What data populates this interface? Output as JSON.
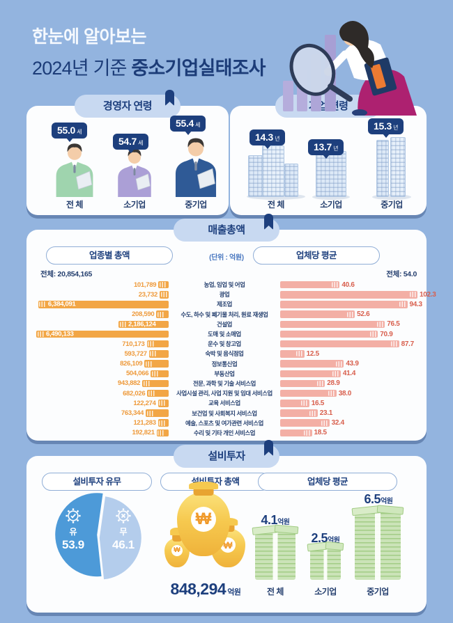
{
  "header": {
    "line1": "한눈에 알아보는",
    "line2_prefix": "2024년 기준 ",
    "line2_bold": "중소기업실태조사"
  },
  "colors": {
    "background": "#93b4df",
    "navy": "#1d3f7d",
    "card": "#fcfdfe",
    "pill": "#c8d9f1",
    "orange_bar": "#f2a645",
    "orange_text": "#ee9a3b",
    "pink_bar": "#f3afa5",
    "coral_text": "#d85f4d",
    "pie_yes": "#4d9ad8",
    "pie_no": "#b4cdec",
    "money_gold": "#f6c94f",
    "bill_green": "#a2cc85"
  },
  "ceo_age": {
    "title": "경영자 연령",
    "items": [
      {
        "label": "전 체",
        "value": "55.0",
        "unit": "세"
      },
      {
        "label": "소기업",
        "value": "54.7",
        "unit": "세"
      },
      {
        "label": "중기업",
        "value": "55.4",
        "unit": "세"
      }
    ]
  },
  "company_age": {
    "title": "기업 연령",
    "items": [
      {
        "label": "전 체",
        "value": "14.3",
        "unit": "년"
      },
      {
        "label": "소기업",
        "value": "13.7",
        "unit": "년"
      },
      {
        "label": "중기업",
        "value": "15.3",
        "unit": "년"
      }
    ]
  },
  "sales": {
    "title": "매출총액",
    "unit_note": "(단위 : 억원)",
    "left_header": "업종별 총액",
    "right_header": "업체당 평균",
    "left_total": "전체: 20,854,165",
    "right_total": "전체: 54.0"
  },
  "invest": {
    "title": "설비투자",
    "pill_has": "설비투자 유무",
    "pill_total": "설비투자 총액",
    "pill_avg": "업체당 평균",
    "yes_label": "유",
    "yes_value": "53.9",
    "no_label": "무",
    "no_value": "46.1",
    "total_value": "848,294",
    "total_unit": "억원",
    "avgs": [
      {
        "label": "전 체",
        "value": "4.1",
        "unit": "억원"
      },
      {
        "label": "소기업",
        "value": "2.5",
        "unit": "억원"
      },
      {
        "label": "중기업",
        "value": "6.5",
        "unit": "억원"
      }
    ]
  },
  "chart_data": [
    {
      "type": "bar",
      "title": "매출총액 (업종별 총액 / 업체당 평균)",
      "unit": "억원",
      "legend_position": "top",
      "categories": [
        "농업, 임업 및 어업",
        "광업",
        "제조업",
        "수도, 하수 및 폐기물 처리, 원료 재생업",
        "건설업",
        "도매 및 소매업",
        "운수 및 창고업",
        "숙박 및 음식점업",
        "정보통신업",
        "부동산업",
        "전문, 과학 및 기술 서비스업",
        "사업시설 관리, 사업 지원 및 임대 서비스업",
        "교육 서비스업",
        "보건업 및 사회복지 서비스업",
        "예술, 스포츠 및 여가관련 서비스업",
        "수리 및 기타 개인 서비스업"
      ],
      "series": [
        {
          "name": "업종별 총액",
          "total": 20854165,
          "values": [
            101789,
            23732,
            6384091,
            208590,
            2186124,
            6490133,
            710173,
            593727,
            826109,
            504066,
            943882,
            682026,
            122274,
            763344,
            121283,
            192821
          ]
        },
        {
          "name": "업체당 평균",
          "overall": 54.0,
          "values": [
            40.6,
            102.3,
            94.3,
            52.6,
            76.5,
            70.9,
            87.7,
            12.5,
            43.9,
            41.4,
            28.9,
            38.0,
            16.5,
            23.1,
            32.4,
            18.5
          ]
        }
      ]
    },
    {
      "type": "pie",
      "title": "설비투자 유무",
      "slices": [
        {
          "label": "유",
          "value": 53.9
        },
        {
          "label": "무",
          "value": 46.1
        }
      ]
    }
  ]
}
